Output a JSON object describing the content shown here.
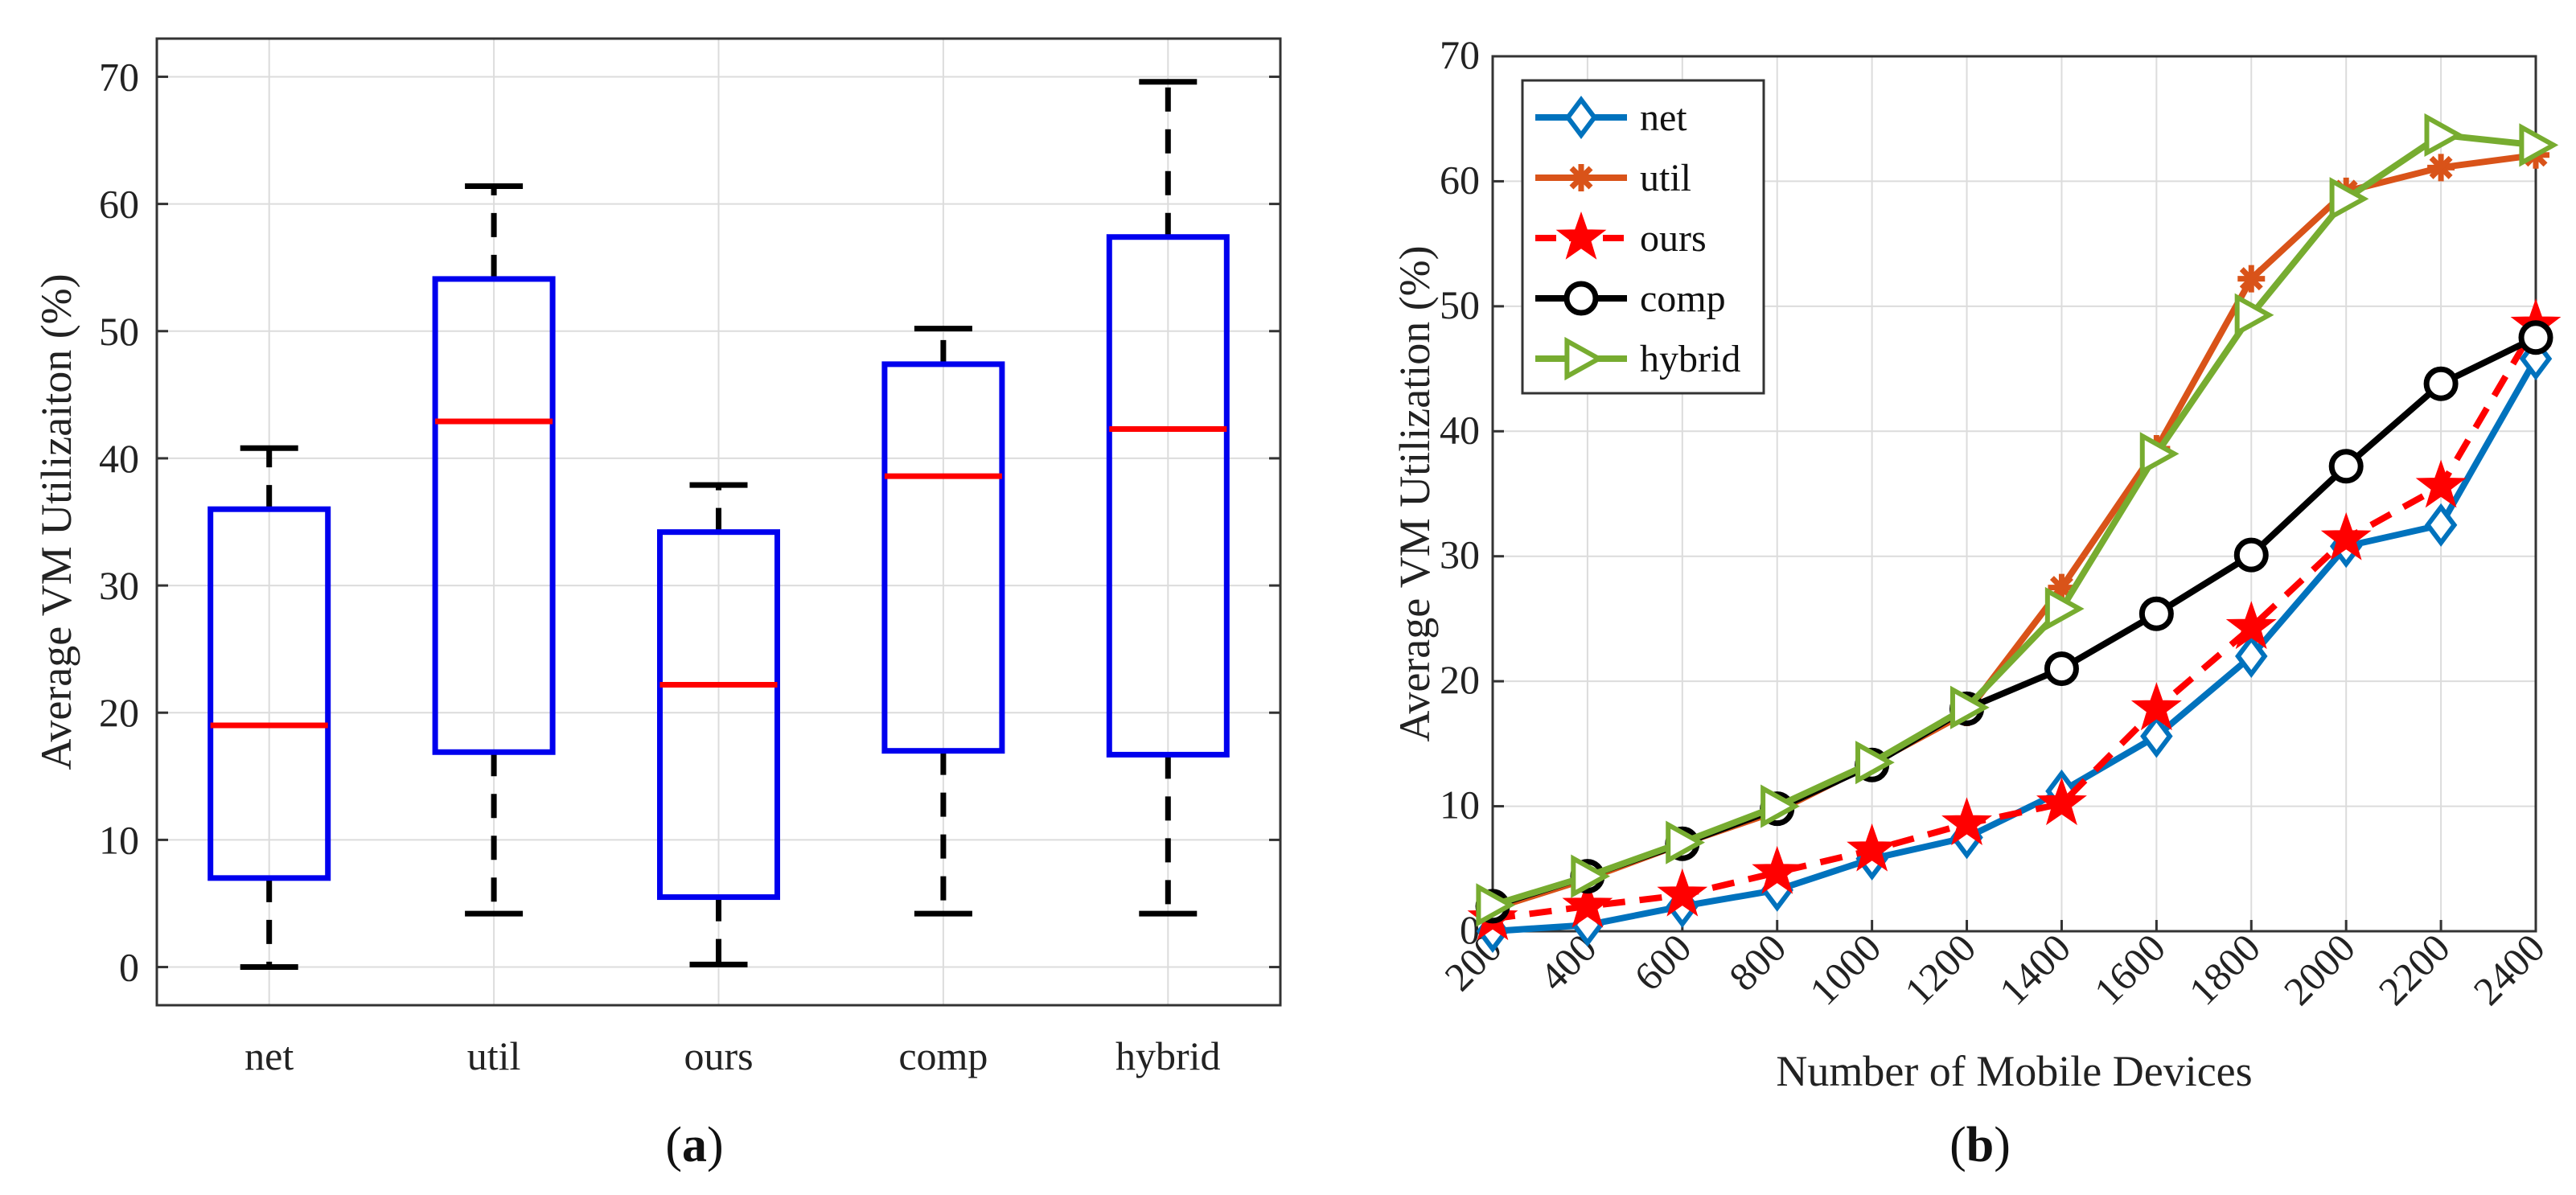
{
  "chart_data": [
    {
      "type": "box",
      "panel_label": "a",
      "title": "",
      "xlabel": "",
      "ylabel": "Average VM Utilizaiton (%)",
      "ylim": [
        -3,
        73
      ],
      "yticks": [
        0,
        10,
        20,
        30,
        40,
        50,
        60,
        70
      ],
      "grid": true,
      "colors": {
        "box": "#0000ee",
        "median": "#ff0000",
        "whisker": "#000000"
      },
      "categories": [
        "net",
        "util",
        "ours",
        "comp",
        "hybrid"
      ],
      "boxes": [
        {
          "name": "net",
          "min": 0,
          "q1": 7,
          "median": 19,
          "q3": 36,
          "max": 40.8
        },
        {
          "name": "util",
          "min": 4.2,
          "q1": 16.9,
          "median": 42.9,
          "q3": 54.1,
          "max": 61.4
        },
        {
          "name": "ours",
          "min": 0.2,
          "q1": 5.5,
          "median": 22.2,
          "q3": 34.2,
          "max": 37.9
        },
        {
          "name": "comp",
          "min": 4.2,
          "q1": 17,
          "median": 38.6,
          "q3": 47.4,
          "max": 50.2
        },
        {
          "name": "hybrid",
          "min": 4.2,
          "q1": 16.7,
          "median": 42.3,
          "q3": 57.4,
          "max": 69.6
        }
      ]
    },
    {
      "type": "line",
      "panel_label": "b",
      "title": "",
      "xlabel": "Number of Mobile Devices",
      "ylabel": "Average VM Utilization (%)",
      "ylim": [
        0,
        70
      ],
      "yticks": [
        0,
        10,
        20,
        30,
        40,
        50,
        60,
        70
      ],
      "grid": true,
      "legend_position": "top-left",
      "x": [
        200,
        400,
        600,
        800,
        1000,
        1200,
        1400,
        1600,
        1800,
        2000,
        2200,
        2400
      ],
      "series": [
        {
          "name": "net",
          "color": "#0072bd",
          "marker": "diamond",
          "dash": "solid",
          "values": [
            0,
            0.5,
            2,
            3.3,
            5.8,
            7.5,
            11.2,
            15.6,
            22,
            30.8,
            32.5,
            45.8
          ]
        },
        {
          "name": "util",
          "color": "#d95319",
          "marker": "asterisk",
          "dash": "solid",
          "values": [
            1.8,
            4.2,
            7,
            9.6,
            13.4,
            17.5,
            27.5,
            38.6,
            52.2,
            59.2,
            61.1,
            62.1
          ]
        },
        {
          "name": "ours",
          "color": "#ff0000",
          "marker": "star",
          "dash": "dashed",
          "values": [
            1,
            2,
            2.9,
            4.7,
            6.5,
            8.6,
            10.2,
            17.8,
            24.3,
            31.4,
            35.6,
            48.5
          ]
        },
        {
          "name": "comp",
          "color": "#000000",
          "marker": "circle",
          "dash": "solid",
          "values": [
            2,
            4.4,
            7,
            9.8,
            13.3,
            17.8,
            21,
            25.4,
            30.1,
            37.2,
            43.8,
            47.5
          ]
        },
        {
          "name": "hybrid",
          "color": "#77ac30",
          "marker": "triangle-right",
          "dash": "solid",
          "values": [
            2.1,
            4.4,
            7.1,
            10,
            13.5,
            17.9,
            25.8,
            38.2,
            49.3,
            58.6,
            63.7,
            62.9
          ]
        }
      ]
    }
  ]
}
